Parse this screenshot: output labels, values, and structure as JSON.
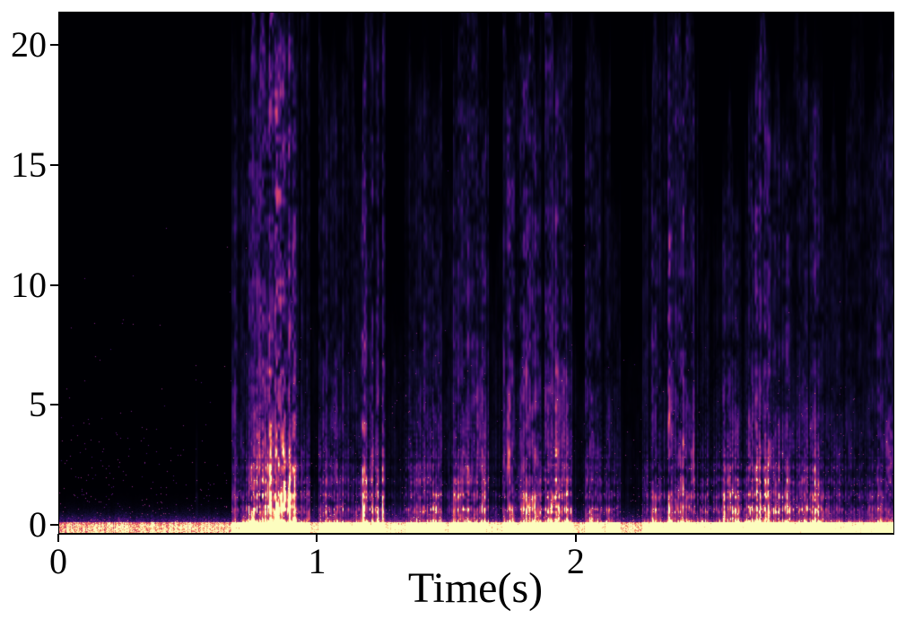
{
  "chart_data": {
    "type": "heatmap",
    "subtype": "audio-spectrogram",
    "title": "",
    "xlabel": "Time(s)",
    "ylabel": "",
    "x_tick_labels": [
      "0",
      "1",
      "2"
    ],
    "x_tick_values": [
      0,
      1,
      2
    ],
    "y_tick_labels": [
      "0",
      "5",
      "10",
      "15",
      "20"
    ],
    "y_tick_values": [
      0,
      5,
      10,
      15,
      20
    ],
    "xlim": [
      0,
      3.224
    ],
    "ylim": [
      -0.3,
      21.4
    ],
    "grid": false,
    "legend": null,
    "colormap": "magma",
    "colormap_stops": [
      {
        "v": 0.0,
        "c": "#000004"
      },
      {
        "v": 0.13,
        "c": "#140e36"
      },
      {
        "v": 0.25,
        "c": "#3b0f70"
      },
      {
        "v": 0.38,
        "c": "#641a80"
      },
      {
        "v": 0.5,
        "c": "#8c2981"
      },
      {
        "v": 0.63,
        "c": "#b73779"
      },
      {
        "v": 0.75,
        "c": "#de4968"
      },
      {
        "v": 0.85,
        "c": "#fb8861"
      },
      {
        "v": 0.93,
        "c": "#fec287"
      },
      {
        "v": 1.0,
        "c": "#fcfdbf"
      }
    ],
    "silence_until_s": 0.665,
    "speech_segments": [
      {
        "t_start": 0.525,
        "t_end": 0.535,
        "top_freq": 3.2,
        "intensity": 0.1,
        "low_band": 0.03
      },
      {
        "t_start": 0.665,
        "t_end": 0.72,
        "top_freq": 19.0,
        "intensity": 0.33,
        "low_band": 0.45
      },
      {
        "t_start": 0.72,
        "t_end": 0.81,
        "top_freq": 20.0,
        "intensity": 0.45,
        "low_band": 0.9
      },
      {
        "t_start": 0.81,
        "t_end": 0.97,
        "top_freq": 21.0,
        "intensity": 0.72,
        "low_band": 0.95
      },
      {
        "t_start": 0.97,
        "t_end": 1.0,
        "top_freq": 10.0,
        "intensity": 0.06,
        "low_band": 0.1
      },
      {
        "t_start": 1.0,
        "t_end": 1.13,
        "top_freq": 20.5,
        "intensity": 0.45,
        "low_band": 0.75
      },
      {
        "t_start": 1.13,
        "t_end": 1.17,
        "top_freq": 18.0,
        "intensity": 0.3,
        "low_band": 0.4
      },
      {
        "t_start": 1.17,
        "t_end": 1.26,
        "top_freq": 21.0,
        "intensity": 0.65,
        "low_band": 0.85
      },
      {
        "t_start": 1.26,
        "t_end": 1.33,
        "top_freq": 8.0,
        "intensity": 0.07,
        "low_band": 0.18
      },
      {
        "t_start": 1.33,
        "t_end": 1.48,
        "top_freq": 17.5,
        "intensity": 0.4,
        "low_band": 0.8
      },
      {
        "t_start": 1.48,
        "t_end": 1.52,
        "top_freq": 14.0,
        "intensity": 0.15,
        "low_band": 0.25
      },
      {
        "t_start": 1.52,
        "t_end": 1.66,
        "top_freq": 20.0,
        "intensity": 0.45,
        "low_band": 0.75
      },
      {
        "t_start": 1.66,
        "t_end": 1.71,
        "top_freq": 10.0,
        "intensity": 0.1,
        "low_band": 0.25
      },
      {
        "t_start": 1.71,
        "t_end": 1.85,
        "top_freq": 21.2,
        "intensity": 0.55,
        "low_band": 0.5
      },
      {
        "t_start": 1.85,
        "t_end": 1.98,
        "top_freq": 20.0,
        "intensity": 0.48,
        "low_band": 0.95
      },
      {
        "t_start": 1.98,
        "t_end": 2.03,
        "top_freq": 7.0,
        "intensity": 0.06,
        "low_band": 0.12
      },
      {
        "t_start": 2.03,
        "t_end": 2.13,
        "top_freq": 20.5,
        "intensity": 0.42,
        "low_band": 0.65
      },
      {
        "t_start": 2.13,
        "t_end": 2.17,
        "top_freq": 14.0,
        "intensity": 0.16,
        "low_band": 0.45
      },
      {
        "t_start": 2.17,
        "t_end": 2.25,
        "top_freq": 6.0,
        "intensity": 0.04,
        "low_band": 0.05
      },
      {
        "t_start": 2.25,
        "t_end": 2.35,
        "top_freq": 18.0,
        "intensity": 0.3,
        "low_band": 0.5
      },
      {
        "t_start": 2.35,
        "t_end": 2.47,
        "top_freq": 21.0,
        "intensity": 0.6,
        "low_band": 0.65
      },
      {
        "t_start": 2.47,
        "t_end": 2.56,
        "top_freq": 12.0,
        "intensity": 0.15,
        "low_band": 0.65
      },
      {
        "t_start": 2.56,
        "t_end": 2.66,
        "top_freq": 15.0,
        "intensity": 0.3,
        "low_band": 0.95
      },
      {
        "t_start": 2.66,
        "t_end": 2.75,
        "top_freq": 20.5,
        "intensity": 0.55,
        "low_band": 1.0
      },
      {
        "t_start": 2.75,
        "t_end": 2.95,
        "top_freq": 19.0,
        "intensity": 0.35,
        "low_band": 0.85
      },
      {
        "t_start": 2.95,
        "t_end": 3.04,
        "top_freq": 15.0,
        "intensity": 0.18,
        "low_band": 0.45
      },
      {
        "t_start": 3.04,
        "t_end": 3.23,
        "top_freq": 18.0,
        "intensity": 0.26,
        "low_band": 0.4
      }
    ],
    "seed": 7
  },
  "colors": {
    "axis": "#000000",
    "figure_background": "#ffffff",
    "plot_background": "#000004"
  }
}
